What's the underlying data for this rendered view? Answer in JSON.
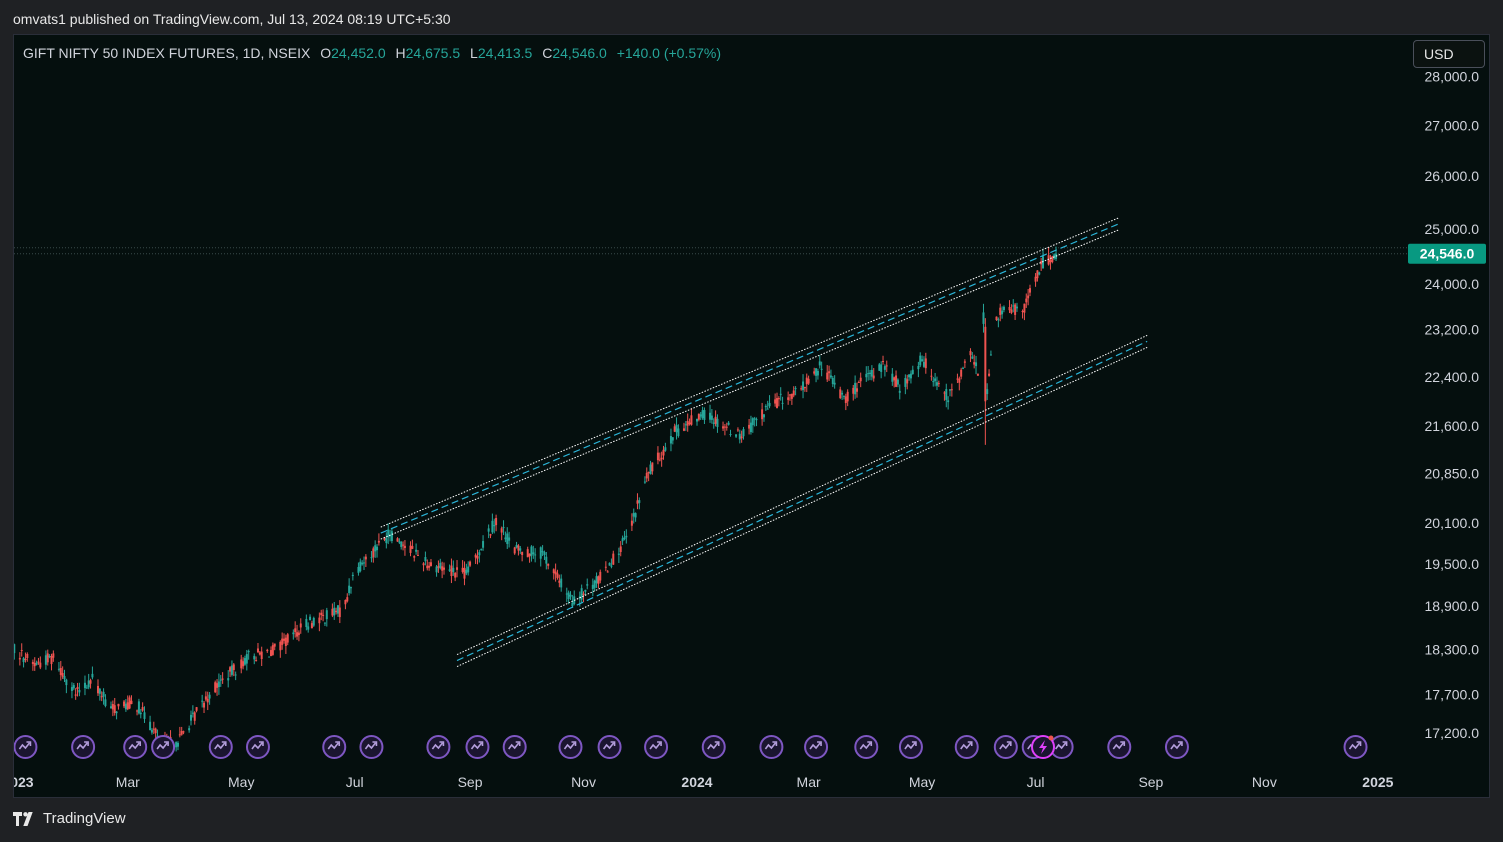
{
  "publish_line": "omvats1 published on TradingView.com, Jul 13, 2024 08:19 UTC+5:30",
  "legend": {
    "symbol": "GIFT NIFTY 50 INDEX FUTURES, 1D, NSEIX",
    "o_label": "O",
    "o": "24,452.0",
    "h_label": "H",
    "h": "24,675.5",
    "l_label": "L",
    "l": "24,413.5",
    "c_label": "C",
    "c": "24,546.0",
    "change": "+140.0 (+0.57%)"
  },
  "currency": "USD",
  "footer_brand": "TradingView",
  "colors": {
    "up": "#26a69a",
    "down": "#ef5350",
    "bg": "#050f0e",
    "price_badge": "#089981",
    "channel_line": "#ffffff",
    "channel_mid": "#2bb5d8",
    "event_icon": "#7e57c2"
  },
  "chart_data": {
    "type": "candlestick",
    "symbol": "GIFT NIFTY 50 INDEX FUTURES",
    "interval": "1D",
    "last_price": "24,546.0",
    "y_axis": {
      "scale": "log",
      "ticks": [
        "28,000.0",
        "27,000.0",
        "26,000.0",
        "25,000.0",
        "24,000.0",
        "23,200.0",
        "22,400.0",
        "21,600.0",
        "20,850.0",
        "20,100.0",
        "19,500.0",
        "18,900.0",
        "18,300.0",
        "17,700.0",
        "17,200.0"
      ]
    },
    "x_axis": {
      "ticks": [
        {
          "label": "2023",
          "date": "2023-01-01",
          "bold": true
        },
        {
          "label": "Mar",
          "date": "2023-03-01"
        },
        {
          "label": "May",
          "date": "2023-05-01"
        },
        {
          "label": "Jul",
          "date": "2023-07-01"
        },
        {
          "label": "Sep",
          "date": "2023-09-01"
        },
        {
          "label": "Nov",
          "date": "2023-11-01"
        },
        {
          "label": "2024",
          "date": "2024-01-01",
          "bold": true
        },
        {
          "label": "Mar",
          "date": "2024-03-01"
        },
        {
          "label": "May",
          "date": "2024-05-01"
        },
        {
          "label": "Jul",
          "date": "2024-07-01"
        },
        {
          "label": "Sep",
          "date": "2024-09-01"
        },
        {
          "label": "Nov",
          "date": "2024-11-01"
        },
        {
          "label": "2025",
          "date": "2025-01-01",
          "bold": true
        }
      ]
    },
    "price_path": [
      {
        "date": "2022-12-22",
        "close": 18450
      },
      {
        "date": "2023-01-10",
        "close": 18100
      },
      {
        "date": "2023-01-20",
        "close": 18200
      },
      {
        "date": "2023-02-01",
        "close": 17700
      },
      {
        "date": "2023-02-10",
        "close": 17900
      },
      {
        "date": "2023-02-20",
        "close": 17500
      },
      {
        "date": "2023-03-05",
        "close": 17600
      },
      {
        "date": "2023-03-20",
        "close": 17050
      },
      {
        "date": "2023-03-28",
        "close": 17100
      },
      {
        "date": "2023-04-15",
        "close": 17750
      },
      {
        "date": "2023-05-05",
        "close": 18200
      },
      {
        "date": "2023-05-20",
        "close": 18300
      },
      {
        "date": "2023-06-05",
        "close": 18650
      },
      {
        "date": "2023-06-25",
        "close": 18850
      },
      {
        "date": "2023-07-01",
        "close": 19400
      },
      {
        "date": "2023-07-20",
        "close": 19950
      },
      {
        "date": "2023-08-10",
        "close": 19500
      },
      {
        "date": "2023-08-30",
        "close": 19350
      },
      {
        "date": "2023-09-15",
        "close": 20150
      },
      {
        "date": "2023-09-25",
        "close": 19700
      },
      {
        "date": "2023-10-10",
        "close": 19650
      },
      {
        "date": "2023-10-26",
        "close": 18950
      },
      {
        "date": "2023-11-10",
        "close": 19300
      },
      {
        "date": "2023-11-25",
        "close": 19900
      },
      {
        "date": "2023-12-05",
        "close": 20800
      },
      {
        "date": "2023-12-20",
        "close": 21500
      },
      {
        "date": "2024-01-05",
        "close": 21800
      },
      {
        "date": "2024-01-25",
        "close": 21450
      },
      {
        "date": "2024-02-10",
        "close": 21950
      },
      {
        "date": "2024-02-25",
        "close": 22150
      },
      {
        "date": "2024-03-08",
        "close": 22600
      },
      {
        "date": "2024-03-20",
        "close": 22050
      },
      {
        "date": "2024-04-10",
        "close": 22600
      },
      {
        "date": "2024-04-20",
        "close": 22200
      },
      {
        "date": "2024-05-01",
        "close": 22700
      },
      {
        "date": "2024-05-15",
        "close": 22050
      },
      {
        "date": "2024-05-28",
        "close": 22800
      },
      {
        "date": "2024-06-04",
        "close": 21900
      },
      {
        "date": "2024-06-10",
        "close": 23450
      },
      {
        "date": "2024-06-25",
        "close": 23600
      },
      {
        "date": "2024-07-05",
        "close": 24400
      },
      {
        "date": "2024-07-12",
        "close": 24546
      }
    ],
    "drawings": [
      {
        "name": "upper-channel",
        "x1": "2023-07-15",
        "y1": 19950,
        "x2": "2024-08-15",
        "y2": 25100
      },
      {
        "name": "lower-channel",
        "x1": "2023-08-25",
        "y1": 18150,
        "x2": "2024-08-30",
        "y2": 23000
      }
    ],
    "event_markers": [
      "2023-01-05",
      "2023-02-05",
      "2023-03-05",
      "2023-03-20",
      "2023-04-20",
      "2023-05-10",
      "2023-06-20",
      "2023-07-10",
      "2023-08-15",
      "2023-09-05",
      "2023-09-25",
      "2023-10-25",
      "2023-11-15",
      "2023-12-10",
      "2024-01-10",
      "2024-02-10",
      "2024-03-05",
      "2024-04-01",
      "2024-04-25",
      "2024-05-25",
      "2024-06-15",
      "2024-06-30",
      "2024-07-15",
      "2024-08-15",
      "2024-09-15",
      "2024-12-20"
    ],
    "special_marker": "2024-07-05"
  }
}
